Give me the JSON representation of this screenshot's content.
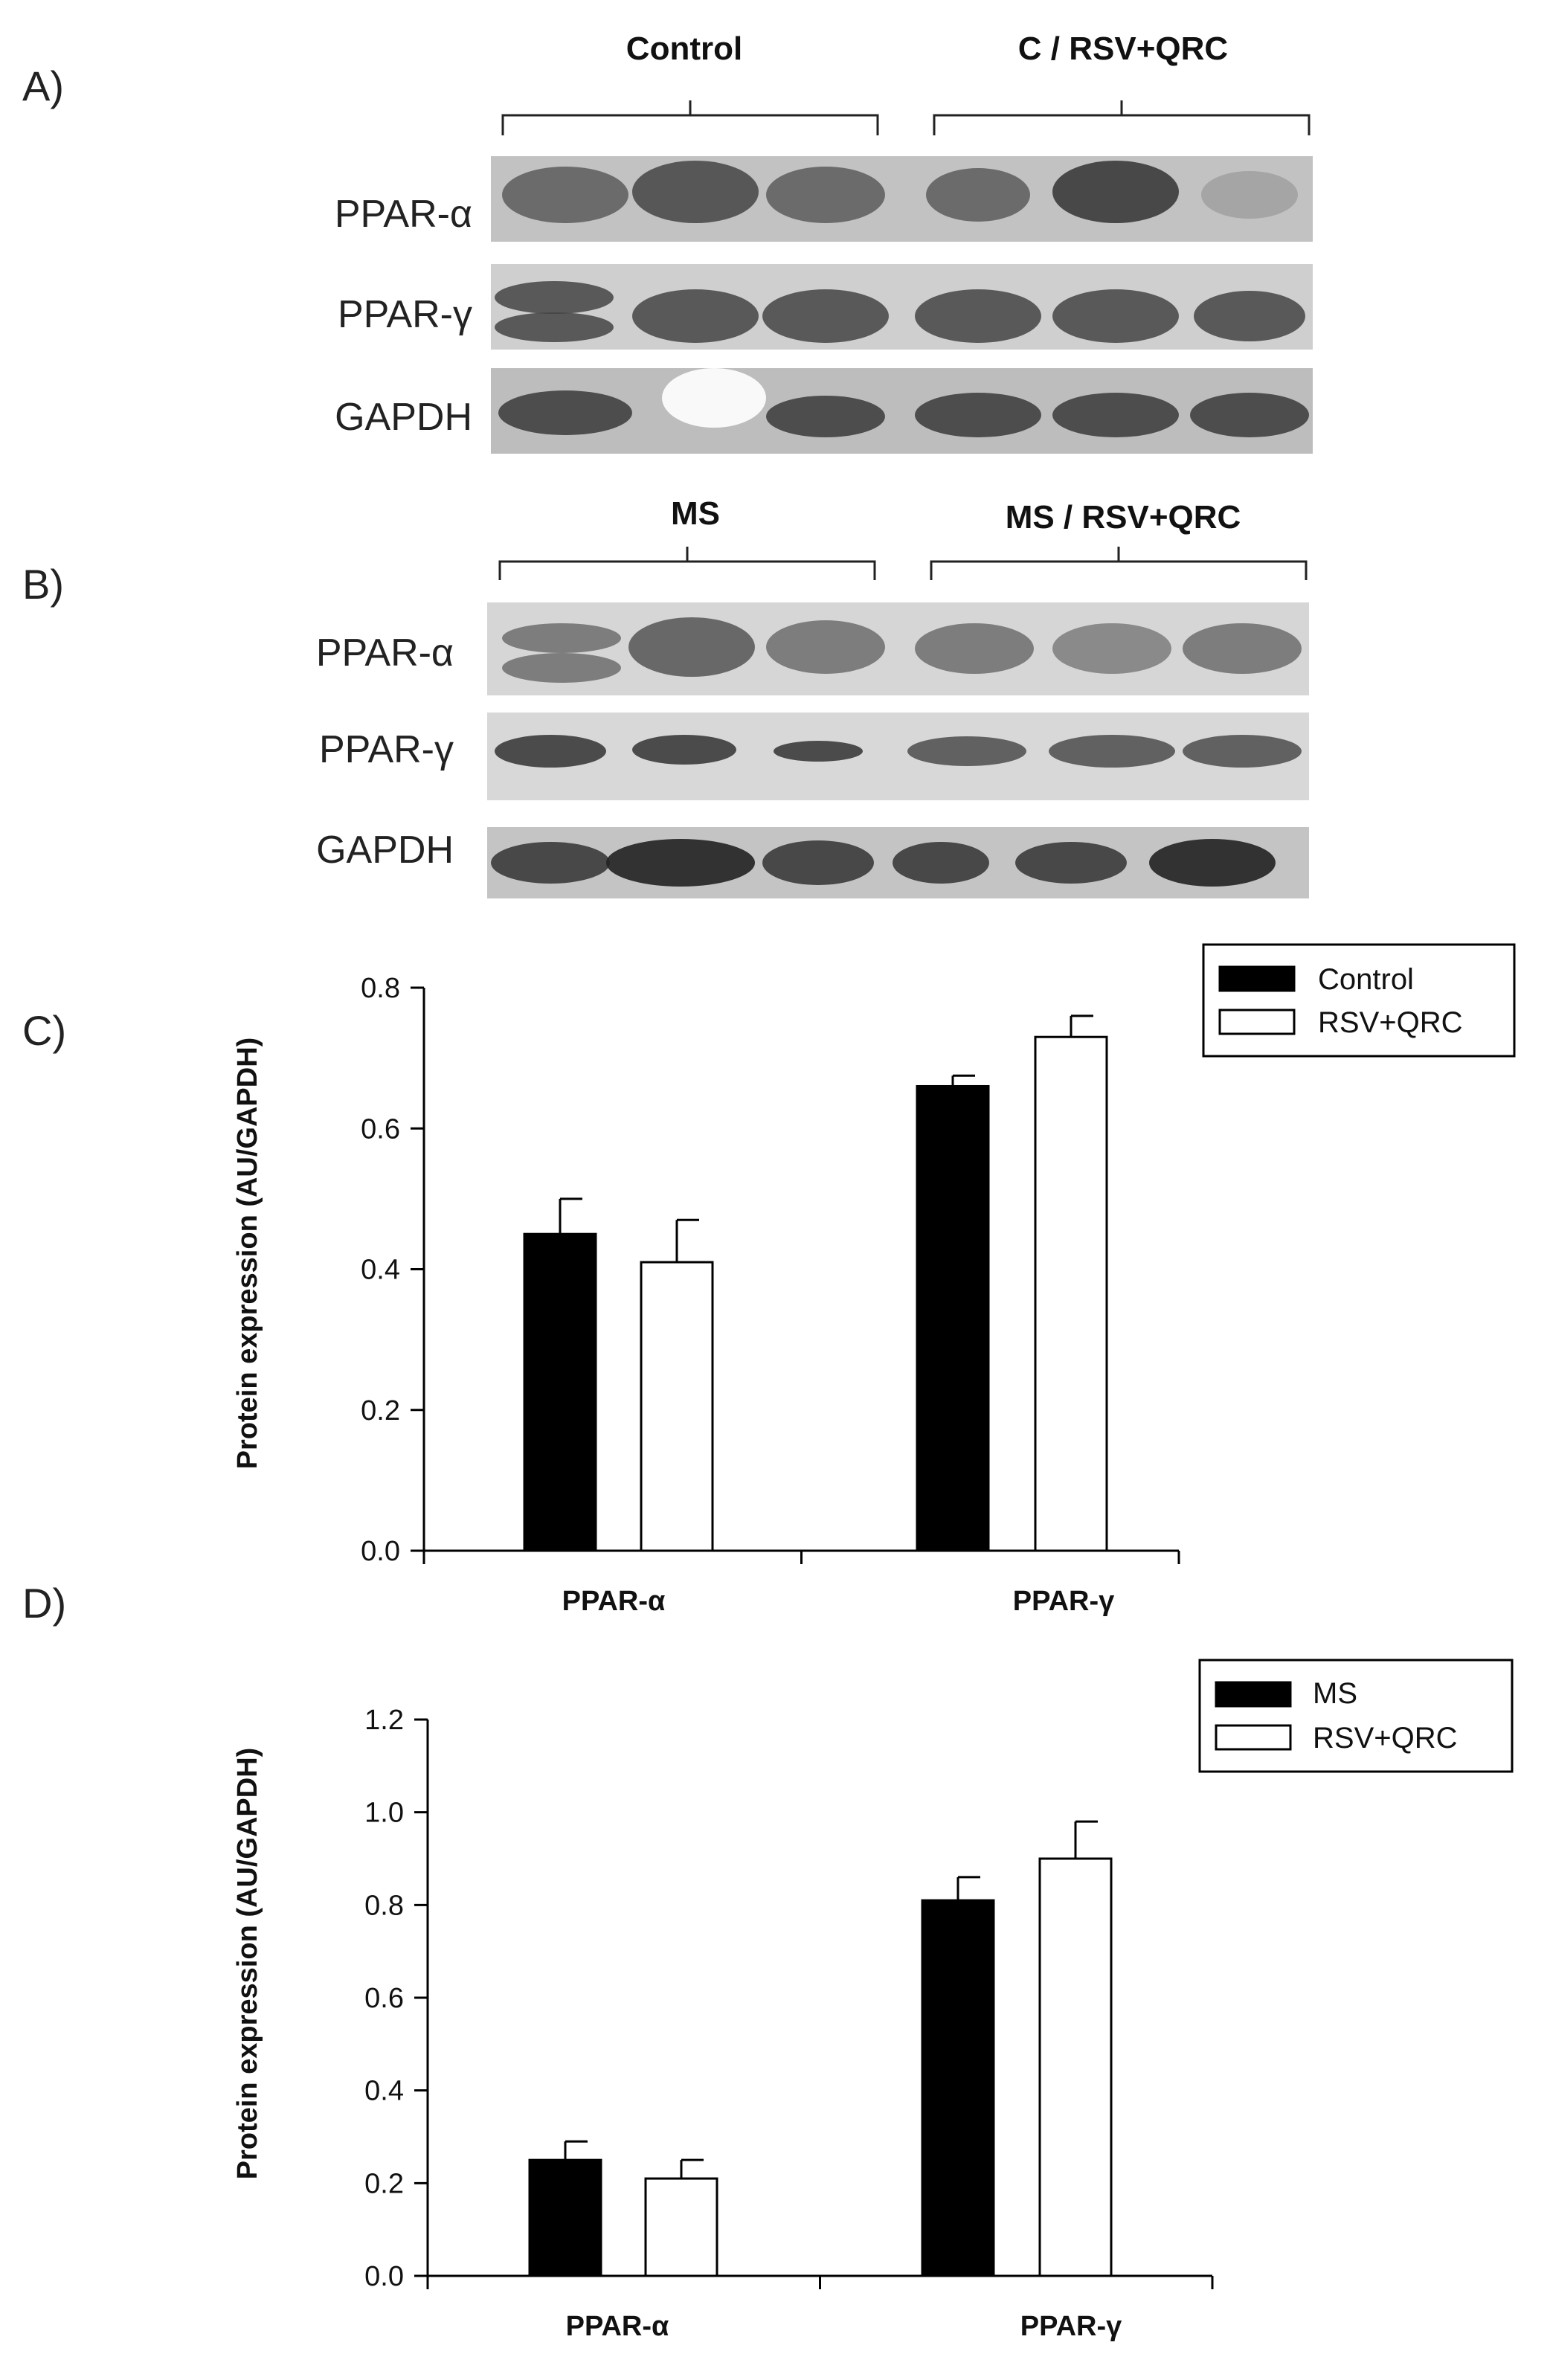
{
  "panels": {
    "A": "A)",
    "B": "B)",
    "C": "C)",
    "D": "D)"
  },
  "blot_A": {
    "groups": [
      "Control",
      "C / RSV+QRC"
    ],
    "bands": [
      "PPAR-α",
      "PPAR-γ",
      "GAPDH"
    ]
  },
  "blot_B": {
    "groups": [
      "MS",
      "MS / RSV+QRC"
    ],
    "bands": [
      "PPAR-α",
      "PPAR-γ",
      "GAPDH"
    ]
  },
  "colors": {
    "series1": "#000000",
    "series2": "#ffffff",
    "blot_bg": "#bdbdbd",
    "band": "#3a3a3a"
  },
  "chart_data": [
    {
      "type": "bar",
      "panel": "C)",
      "categories": [
        "PPAR-α",
        "PPAR-γ"
      ],
      "series": [
        {
          "name": "Control",
          "values": [
            0.45,
            0.66
          ],
          "errors": [
            0.05,
            0.015
          ]
        },
        {
          "name": "RSV+QRC",
          "values": [
            0.41,
            0.73
          ],
          "errors": [
            0.06,
            0.03
          ]
        }
      ],
      "ylabel": "Protein expression (AU/GAPDH)",
      "ylim": [
        0,
        0.8
      ],
      "yticks": [
        "0.0",
        "0.2",
        "0.4",
        "0.6",
        "0.8"
      ],
      "grid": false,
      "legend": "top-right"
    },
    {
      "type": "bar",
      "panel": "D)",
      "categories": [
        "PPAR-α",
        "PPAR-γ"
      ],
      "series": [
        {
          "name": "MS",
          "values": [
            0.25,
            0.81
          ],
          "errors": [
            0.04,
            0.05
          ]
        },
        {
          "name": "RSV+QRC",
          "values": [
            0.21,
            0.9
          ],
          "errors": [
            0.04,
            0.08
          ]
        }
      ],
      "ylabel": "Protein expression (AU/GAPDH)",
      "ylim": [
        0,
        1.2
      ],
      "yticks": [
        "0.0",
        "0.2",
        "0.4",
        "0.6",
        "0.8",
        "1.0",
        "1.2"
      ],
      "grid": false,
      "legend": "top-right"
    }
  ]
}
